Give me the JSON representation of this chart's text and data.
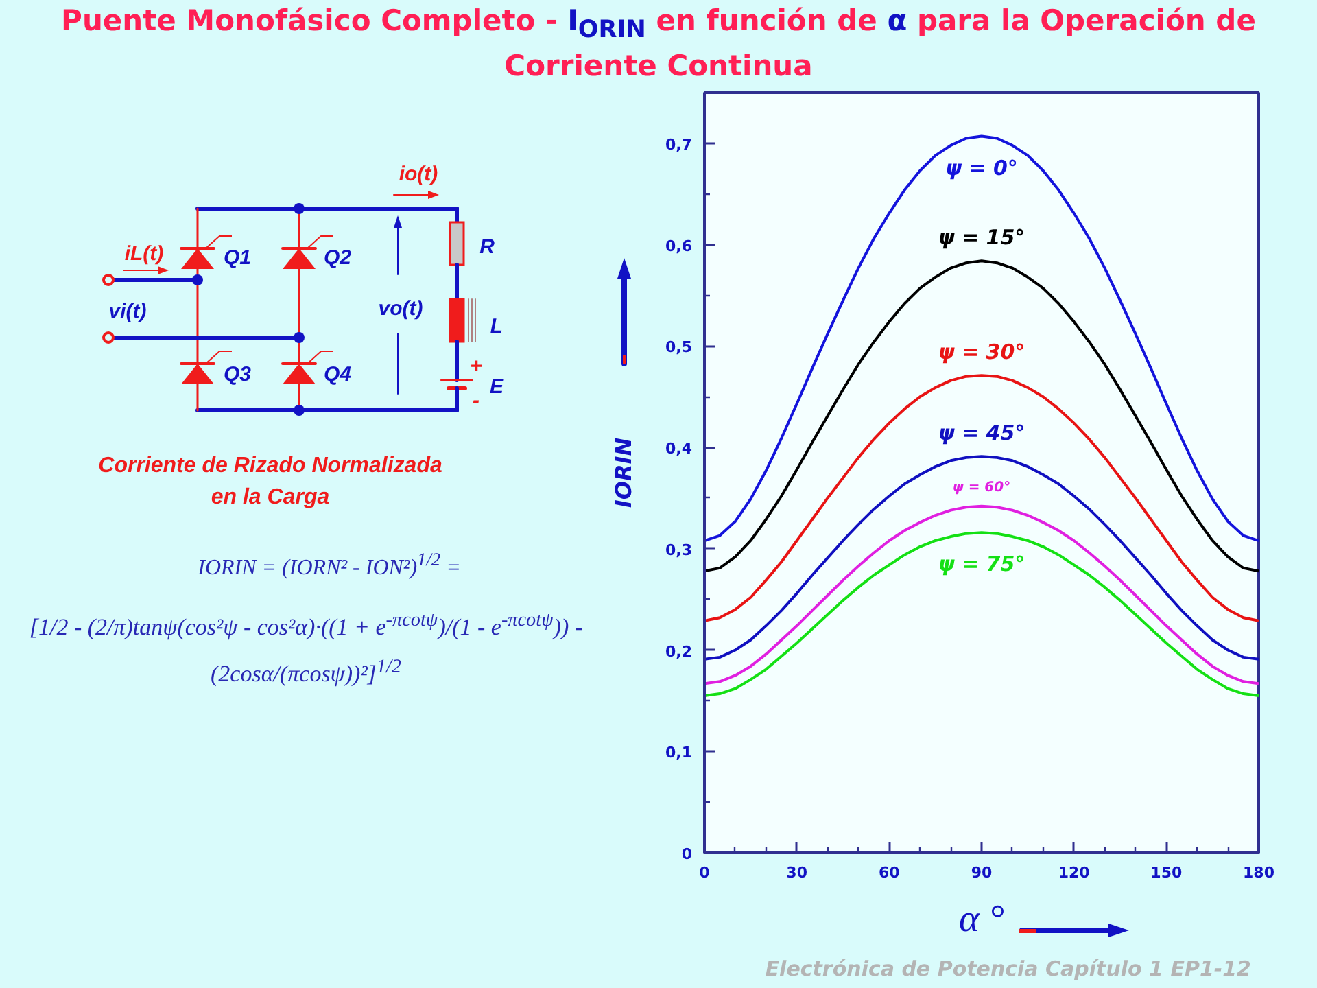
{
  "chart_data": {
    "type": "line",
    "title": "Puente Monofásico Completo - I$_{ORIN}$ en función de α para la Operación de Corriente Continua",
    "xlabel": "α °",
    "ylabel": "IORIN",
    "x": [
      0,
      5,
      10,
      15,
      20,
      25,
      30,
      35,
      40,
      45,
      50,
      55,
      60,
      65,
      70,
      75,
      80,
      85,
      90,
      95,
      100,
      105,
      110,
      115,
      120,
      125,
      130,
      135,
      140,
      145,
      150,
      155,
      160,
      165,
      170,
      175,
      180
    ],
    "xlim": [
      0,
      180
    ],
    "ylim": [
      0,
      0.75
    ],
    "xticks": [
      0,
      {
        "value": 10,
        "label": null
      },
      {
        "value": 20,
        "label": null
      },
      30,
      {
        "value": 40,
        "label": null
      },
      {
        "value": 50,
        "label": null
      },
      60,
      {
        "value": 70,
        "label": null
      },
      {
        "value": 80,
        "label": null
      },
      90,
      {
        "value": 100,
        "label": null
      },
      {
        "value": 110,
        "label": null
      },
      120,
      {
        "value": 130,
        "label": null
      },
      {
        "value": 140,
        "label": null
      },
      150,
      {
        "value": 160,
        "label": null
      },
      {
        "value": 170,
        "label": null
      },
      180
    ],
    "yticks": [
      0,
      {
        "value": 0.05,
        "label": null
      },
      {
        "value": 0.1,
        "label": "0,1"
      },
      {
        "value": 0.15,
        "label": null
      },
      {
        "value": 0.2,
        "label": "0,2"
      },
      {
        "value": 0.25,
        "label": null
      },
      {
        "value": 0.3,
        "label": "0,3"
      },
      {
        "value": 0.35,
        "label": null
      },
      {
        "value": 0.4,
        "label": "0,4"
      },
      {
        "value": 0.45,
        "label": null
      },
      {
        "value": 0.5,
        "label": "0,5"
      },
      {
        "value": 0.55,
        "label": null
      },
      {
        "value": 0.6,
        "label": "0,6"
      },
      {
        "value": 0.65,
        "label": null
      },
      {
        "value": 0.7,
        "label": "0,7"
      }
    ],
    "grid": false,
    "series": [
      {
        "name": "ψ = 0°",
        "color": "#1414dc",
        "values": [
          0.308,
          0.313,
          0.327,
          0.349,
          0.377,
          0.409,
          0.443,
          0.478,
          0.512,
          0.545,
          0.577,
          0.606,
          0.631,
          0.654,
          0.673,
          0.688,
          0.698,
          0.705,
          0.707,
          0.705,
          0.698,
          0.688,
          0.673,
          0.654,
          0.631,
          0.606,
          0.577,
          0.545,
          0.512,
          0.478,
          0.443,
          0.409,
          0.377,
          0.349,
          0.327,
          0.313,
          0.308
        ]
      },
      {
        "name": "ψ = 15°",
        "color": "#000000",
        "values": [
          0.278,
          0.281,
          0.292,
          0.308,
          0.329,
          0.352,
          0.378,
          0.405,
          0.431,
          0.457,
          0.482,
          0.504,
          0.524,
          0.542,
          0.557,
          0.568,
          0.577,
          0.582,
          0.584,
          0.582,
          0.577,
          0.568,
          0.557,
          0.542,
          0.524,
          0.504,
          0.482,
          0.457,
          0.431,
          0.405,
          0.378,
          0.352,
          0.329,
          0.308,
          0.292,
          0.281,
          0.278
        ]
      },
      {
        "name": "ψ = 30°",
        "color": "#e81414",
        "values": [
          0.229,
          0.232,
          0.24,
          0.252,
          0.269,
          0.287,
          0.308,
          0.329,
          0.35,
          0.37,
          0.39,
          0.408,
          0.424,
          0.438,
          0.45,
          0.459,
          0.466,
          0.47,
          0.471,
          0.47,
          0.466,
          0.459,
          0.45,
          0.438,
          0.424,
          0.408,
          0.39,
          0.37,
          0.35,
          0.329,
          0.308,
          0.287,
          0.269,
          0.252,
          0.24,
          0.232,
          0.229
        ]
      },
      {
        "name": "ψ = 45°",
        "color": "#1010c0",
        "values": [
          0.191,
          0.193,
          0.2,
          0.21,
          0.224,
          0.239,
          0.256,
          0.274,
          0.291,
          0.308,
          0.324,
          0.339,
          0.352,
          0.364,
          0.373,
          0.381,
          0.387,
          0.39,
          0.391,
          0.39,
          0.387,
          0.381,
          0.373,
          0.364,
          0.352,
          0.339,
          0.324,
          0.308,
          0.291,
          0.274,
          0.256,
          0.239,
          0.224,
          0.21,
          0.2,
          0.193,
          0.191
        ]
      },
      {
        "name": "ψ = 60°",
        "color": "#e020e0",
        "values": [
          0.167,
          0.169,
          0.175,
          0.184,
          0.196,
          0.21,
          0.224,
          0.239,
          0.254,
          0.269,
          0.283,
          0.296,
          0.308,
          0.318,
          0.326,
          0.333,
          0.338,
          0.341,
          0.342,
          0.341,
          0.338,
          0.333,
          0.326,
          0.318,
          0.308,
          0.296,
          0.283,
          0.269,
          0.254,
          0.239,
          0.224,
          0.21,
          0.196,
          0.184,
          0.175,
          0.169,
          0.167
        ]
      },
      {
        "name": "ψ = 75°",
        "color": "#14e014",
        "values": [
          0.155,
          0.157,
          0.162,
          0.171,
          0.181,
          0.194,
          0.207,
          0.221,
          0.235,
          0.249,
          0.262,
          0.274,
          0.284,
          0.294,
          0.302,
          0.308,
          0.312,
          0.315,
          0.316,
          0.315,
          0.312,
          0.308,
          0.302,
          0.294,
          0.284,
          0.274,
          0.262,
          0.249,
          0.235,
          0.221,
          0.207,
          0.194,
          0.181,
          0.171,
          0.162,
          0.157,
          0.155
        ]
      }
    ],
    "annotations": [
      "io(t)",
      "R",
      "iL(t)",
      "Q1",
      "Q2",
      "vi(t)",
      "vo(t)",
      "L",
      "Q3",
      "Q4",
      "+",
      "E",
      "-",
      "Corriente de Rizado Normalizada",
      "en la Carga",
      "IORIN = (IORN² - ION²)$^{1/2}$ =",
      "[1/2 - (2/π)tanψ(cos²ψ - cos²α)·((1 + e$^{-πcotψ}$)/(1 - e$^{-πcotψ}$)) - (2cosα/(πcosψ))²]$^{1/2}$",
      "Electrónica de Potencia Capítulo 1 EP1-12"
    ]
  }
}
